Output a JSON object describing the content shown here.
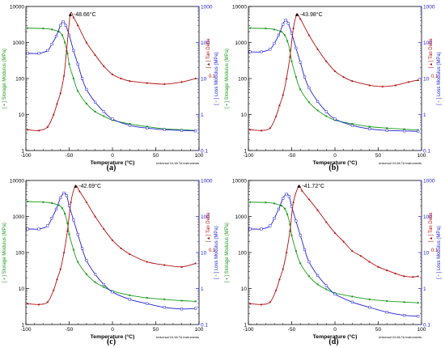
{
  "figure_notes": {
    "instrument_note": "Universal V4.5A TA Instruments"
  },
  "axes_text": {
    "xlabel": "Temperature (°C)",
    "ylabel_left": "[ ▪ ] Storage Modulus (MPa)",
    "ylabel_right_loss": "[ ▫ ] Loss Modulus (MPa)",
    "ylabel_tan": "[ ▴ ] Tan Delta",
    "x_ticks": [
      "-100",
      "-50",
      "0",
      "50",
      "100"
    ],
    "y_left_ticks": [
      "10000",
      "1000",
      "100",
      "10",
      "1"
    ],
    "y_right_ticks": [
      "1000",
      "100",
      "10",
      "1",
      "0.1"
    ],
    "tan_tick": "0.1"
  },
  "colors": {
    "storage": "#1a9b1a",
    "loss": "#2020d8",
    "tan": "#b31010",
    "axis_right": "#2020d8",
    "axis_left": "#1a9b1a"
  },
  "chart_data": [
    {
      "type": "line",
      "panel_label": "(a)",
      "peak_label": "-48.66°C",
      "peak_x": -48.66,
      "xlabel": "Temperature (°C)",
      "xlim": [
        -100,
        100
      ],
      "ylim_left": [
        1,
        10000
      ],
      "ylim_right": [
        0.1,
        1000
      ],
      "log_scale": true,
      "series": [
        {
          "name": "Storage Modulus",
          "axis": "left",
          "x": [
            -98,
            -80,
            -70,
            -62,
            -58,
            -55,
            -52,
            -50,
            -45,
            -40,
            -30,
            -20,
            -10,
            0,
            20,
            40,
            60,
            80,
            96
          ],
          "values": [
            2500,
            2450,
            2300,
            2000,
            1600,
            1000,
            500,
            250,
            100,
            45,
            20,
            12,
            9,
            7,
            5.5,
            4.6,
            4,
            3.8,
            3.6
          ]
        },
        {
          "name": "Loss Modulus",
          "axis": "right",
          "x": [
            -98,
            -85,
            -75,
            -70,
            -65,
            -60,
            -57,
            -54,
            -50,
            -45,
            -40,
            -35,
            -30,
            -20,
            -10,
            0,
            20,
            40,
            60,
            80,
            96
          ],
          "values": [
            50,
            50,
            60,
            90,
            150,
            300,
            380,
            300,
            160,
            60,
            25,
            10,
            5,
            2.2,
            1.2,
            0.75,
            0.5,
            0.42,
            0.38,
            0.36,
            0.35
          ]
        },
        {
          "name": "Tan Delta",
          "axis": "right",
          "x": [
            -98,
            -85,
            -75,
            -68,
            -64,
            -60,
            -56,
            -53,
            -48.66,
            -45,
            -40,
            -30,
            -20,
            -10,
            0,
            10,
            20,
            40,
            60,
            80,
            96
          ],
          "values": [
            0.38,
            0.36,
            0.45,
            1,
            2,
            4,
            12,
            60,
            600,
            500,
            300,
            100,
            45,
            22,
            13,
            10,
            8.5,
            7.5,
            7,
            8,
            10
          ]
        }
      ]
    },
    {
      "type": "line",
      "panel_label": "(b)",
      "peak_label": "-43.98°C",
      "peak_x": -43.98,
      "xlabel": "Temperature (°C)",
      "xlim": [
        -100,
        100
      ],
      "ylim_left": [
        1,
        10000
      ],
      "ylim_right": [
        0.1,
        1000
      ],
      "log_scale": true,
      "series": [
        {
          "name": "Storage Modulus",
          "axis": "left",
          "x": [
            -98,
            -80,
            -70,
            -62,
            -58,
            -55,
            -52,
            -50,
            -45,
            -40,
            -30,
            -20,
            -10,
            0,
            20,
            40,
            60,
            80,
            96
          ],
          "values": [
            2500,
            2450,
            2300,
            2000,
            1600,
            1100,
            600,
            300,
            110,
            50,
            22,
            13,
            9,
            7,
            5.5,
            4.6,
            4.2,
            3.9,
            3.7
          ]
        },
        {
          "name": "Loss Modulus",
          "axis": "right",
          "x": [
            -98,
            -85,
            -75,
            -70,
            -65,
            -60,
            -57,
            -54,
            -50,
            -45,
            -40,
            -35,
            -30,
            -20,
            -10,
            0,
            20,
            40,
            60,
            80,
            96
          ],
          "values": [
            55,
            55,
            65,
            95,
            160,
            320,
            420,
            340,
            180,
            70,
            28,
            11,
            5.5,
            2.3,
            1.2,
            0.75,
            0.5,
            0.4,
            0.36,
            0.35,
            0.34
          ]
        },
        {
          "name": "Tan Delta",
          "axis": "right",
          "x": [
            -98,
            -85,
            -75,
            -68,
            -64,
            -60,
            -56,
            -52,
            -48,
            -43.98,
            -40,
            -30,
            -20,
            -10,
            0,
            10,
            20,
            40,
            55,
            70,
            85,
            96
          ],
          "values": [
            0.38,
            0.36,
            0.42,
            0.9,
            1.8,
            3.5,
            10,
            40,
            250,
            600,
            450,
            160,
            65,
            30,
            16,
            11,
            8.5,
            6.5,
            6,
            6.5,
            8,
            9
          ]
        }
      ]
    },
    {
      "type": "line",
      "panel_label": "(c)",
      "peak_label": "-42.69°C",
      "peak_x": -42.69,
      "xlabel": "Temperature (°C)",
      "xlim": [
        -100,
        100
      ],
      "ylim_left": [
        1,
        10000
      ],
      "ylim_right": [
        0.1,
        1000
      ],
      "log_scale": true,
      "series": [
        {
          "name": "Storage Modulus",
          "axis": "left",
          "x": [
            -98,
            -80,
            -70,
            -62,
            -58,
            -55,
            -52,
            -50,
            -45,
            -40,
            -30,
            -20,
            -10,
            0,
            20,
            40,
            60,
            80,
            96
          ],
          "values": [
            2600,
            2500,
            2350,
            2050,
            1700,
            1200,
            650,
            320,
            120,
            55,
            25,
            15,
            11,
            8.5,
            6.5,
            5.5,
            5,
            4.6,
            4.4
          ]
        },
        {
          "name": "Loss Modulus",
          "axis": "right",
          "x": [
            -98,
            -85,
            -75,
            -70,
            -65,
            -60,
            -56,
            -53,
            -50,
            -45,
            -40,
            -35,
            -30,
            -20,
            -10,
            0,
            20,
            40,
            60,
            80,
            96
          ],
          "values": [
            45,
            45,
            55,
            90,
            160,
            330,
            450,
            380,
            200,
            80,
            32,
            13,
            6,
            2.5,
            1.3,
            0.8,
            0.5,
            0.38,
            0.3,
            0.27,
            0.28
          ]
        },
        {
          "name": "Tan Delta",
          "axis": "right",
          "x": [
            -98,
            -85,
            -75,
            -68,
            -64,
            -60,
            -56,
            -52,
            -48,
            -42.69,
            -38,
            -30,
            -20,
            -10,
            0,
            10,
            20,
            40,
            60,
            80,
            96
          ],
          "values": [
            0.38,
            0.36,
            0.42,
            0.9,
            1.8,
            3.5,
            10,
            40,
            250,
            700,
            500,
            250,
            100,
            45,
            22,
            13,
            9,
            5.5,
            4.5,
            4,
            5
          ]
        }
      ]
    },
    {
      "type": "line",
      "panel_label": "(d)",
      "peak_label": "-41.72°C",
      "peak_x": -41.72,
      "xlabel": "Temperature (°C)",
      "xlim": [
        -100,
        100
      ],
      "ylim_left": [
        1,
        10000
      ],
      "ylim_right": [
        0.1,
        1000
      ],
      "log_scale": true,
      "series": [
        {
          "name": "Storage Modulus",
          "axis": "left",
          "x": [
            -98,
            -80,
            -70,
            -62,
            -58,
            -55,
            -52,
            -50,
            -45,
            -40,
            -30,
            -20,
            -10,
            0,
            20,
            40,
            60,
            80,
            96
          ],
          "values": [
            2500,
            2450,
            2300,
            2000,
            1650,
            1150,
            600,
            300,
            110,
            50,
            22,
            13,
            9.5,
            7.5,
            6,
            5,
            4.5,
            4.2,
            4
          ]
        },
        {
          "name": "Loss Modulus",
          "axis": "right",
          "x": [
            -98,
            -85,
            -75,
            -70,
            -65,
            -60,
            -56,
            -53,
            -50,
            -45,
            -40,
            -35,
            -30,
            -20,
            -10,
            0,
            20,
            40,
            60,
            80,
            96
          ],
          "values": [
            45,
            45,
            55,
            90,
            160,
            320,
            420,
            360,
            190,
            75,
            30,
            12,
            5.5,
            2.3,
            1.2,
            0.7,
            0.42,
            0.3,
            0.22,
            0.18,
            0.17
          ]
        },
        {
          "name": "Tan Delta",
          "axis": "right",
          "x": [
            -98,
            -85,
            -75,
            -68,
            -64,
            -60,
            -56,
            -52,
            -48,
            -41.72,
            -38,
            -30,
            -20,
            -10,
            0,
            10,
            20,
            30,
            40,
            50,
            60,
            70,
            80,
            90,
            96
          ],
          "values": [
            0.38,
            0.36,
            0.42,
            0.9,
            1.8,
            3.5,
            10,
            40,
            250,
            700,
            520,
            300,
            150,
            70,
            35,
            20,
            11,
            8,
            5.5,
            4,
            3.2,
            2.6,
            2.2,
            2.1,
            2.2
          ]
        }
      ]
    }
  ]
}
